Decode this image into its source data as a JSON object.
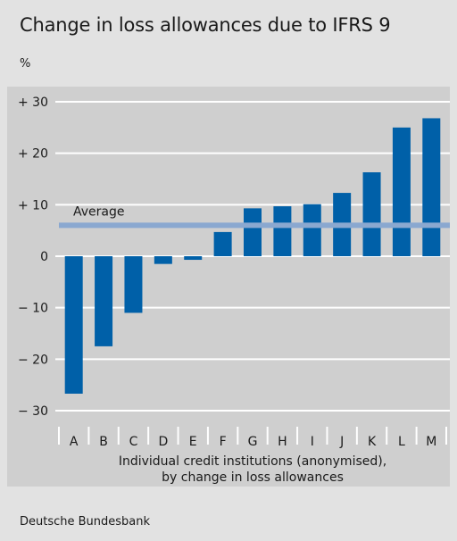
{
  "header": {
    "title": "Change in loss allowances due to IFRS 9",
    "unit": "%"
  },
  "footer": {
    "source": "Deutsche Bundesbank"
  },
  "colors": {
    "bar": "#0060a8",
    "average_line": "#8aa8d0",
    "gridline": "#ffffff",
    "plot_background": "#cfcfcf"
  },
  "chart_data": {
    "type": "bar",
    "title": "Change in loss allowances due to IFRS 9",
    "ylabel": "%",
    "xlabel_lines": [
      "Individual credit institutions (anonymised),",
      "by change in loss allowances"
    ],
    "categories": [
      "A",
      "B",
      "C",
      "D",
      "E",
      "F",
      "G",
      "H",
      "I",
      "J",
      "K",
      "L",
      "M"
    ],
    "values": [
      -26.7,
      -17.5,
      -11.0,
      -1.5,
      -0.7,
      4.7,
      9.3,
      9.7,
      10.1,
      12.3,
      16.3,
      25.0,
      26.8
    ],
    "ylim": [
      -31,
      31
    ],
    "yticks": [
      30,
      20,
      10,
      0,
      -10,
      -20,
      -30
    ],
    "ytick_labels": [
      "+ 30",
      "+ 20",
      "+ 10",
      "0",
      "− 10",
      "− 20",
      "− 30"
    ],
    "grid": true,
    "average": {
      "label": "Average",
      "value": 6.0
    }
  }
}
